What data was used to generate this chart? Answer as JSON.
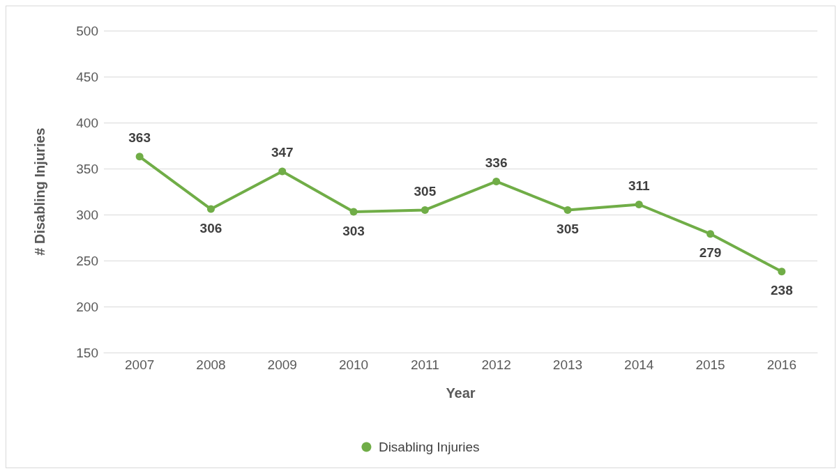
{
  "chart_data": {
    "type": "line",
    "xlabel": "Year",
    "ylabel": "# Disabling Injuries",
    "categories": [
      "2007",
      "2008",
      "2009",
      "2010",
      "2011",
      "2012",
      "2013",
      "2014",
      "2015",
      "2016"
    ],
    "series": [
      {
        "name": "Disabling Injuries",
        "color": "#70ad47",
        "values": [
          363,
          306,
          347,
          303,
          305,
          336,
          305,
          311,
          279,
          238
        ]
      }
    ],
    "ylim": [
      150,
      500
    ],
    "yticks": [
      150,
      200,
      250,
      300,
      350,
      400,
      450,
      500
    ],
    "grid": "y",
    "legend": "bottom",
    "marker": "circle",
    "data_labels": true
  }
}
